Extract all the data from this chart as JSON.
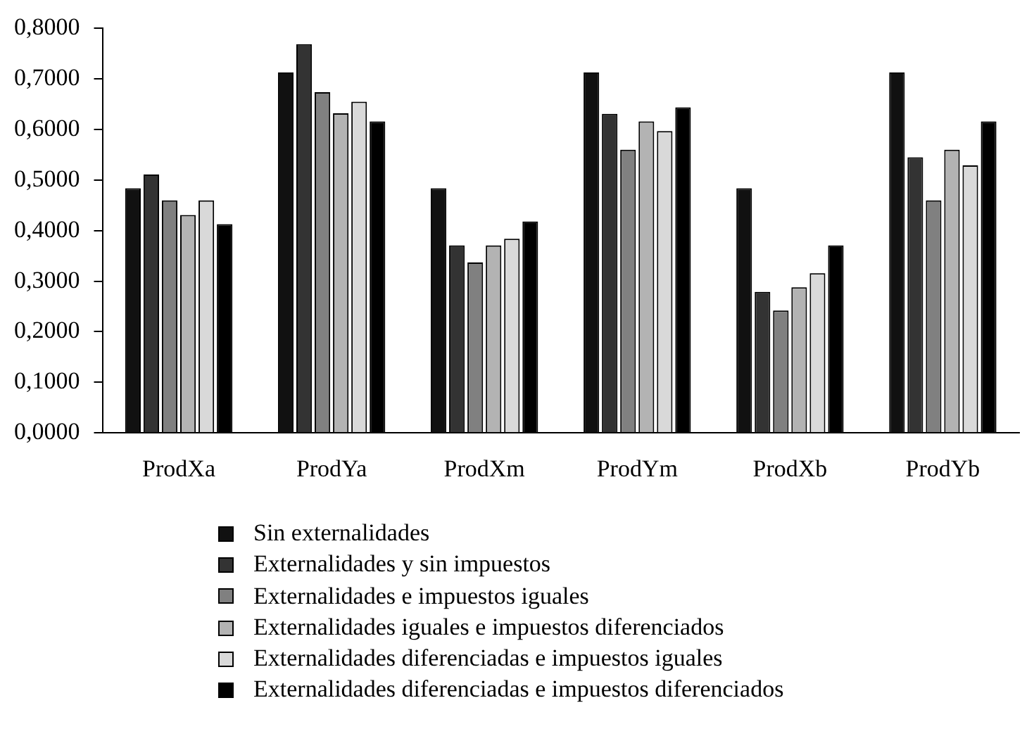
{
  "chart_data": {
    "type": "bar",
    "categories": [
      "ProdXa",
      "ProdYa",
      "ProdXm",
      "ProdYm",
      "ProdXb",
      "ProdYb"
    ],
    "series": [
      {
        "name": "Sin externalidades",
        "color": "#111111",
        "values": [
          0.484,
          0.713,
          0.484,
          0.713,
          0.484,
          0.713
        ]
      },
      {
        "name": "Externalidades y sin impuestos",
        "color": "#333333",
        "values": [
          0.511,
          0.769,
          0.371,
          0.631,
          0.279,
          0.545
        ]
      },
      {
        "name": "Externalidades e impuestos iguales",
        "color": "#808080",
        "values": [
          0.46,
          0.674,
          0.337,
          0.56,
          0.242,
          0.46
        ]
      },
      {
        "name": "Externalidades iguales e impuestos diferenciados",
        "color": "#b3b3b3",
        "values": [
          0.431,
          0.632,
          0.371,
          0.616,
          0.288,
          0.56
        ]
      },
      {
        "name": "Externalidades diferenciadas e impuestos iguales",
        "color": "#d9d9d9",
        "values": [
          0.46,
          0.655,
          0.384,
          0.597,
          0.316,
          0.529
        ]
      },
      {
        "name": "Externalidades diferenciadas e impuestos diferenciados",
        "color": "#000000",
        "values": [
          0.413,
          0.616,
          0.418,
          0.644,
          0.371,
          0.616
        ]
      }
    ],
    "ylim": [
      0,
      0.8
    ],
    "yticks": [
      {
        "value": 0,
        "label": "0,0000"
      },
      {
        "value": 0.1,
        "label": "0,1000"
      },
      {
        "value": 0.2,
        "label": "0,2000"
      },
      {
        "value": 0.3,
        "label": "0,3000"
      },
      {
        "value": 0.4,
        "label": "0,4000"
      },
      {
        "value": 0.5,
        "label": "0,5000"
      },
      {
        "value": 0.6,
        "label": "0,6000"
      },
      {
        "value": 0.7,
        "label": "0,7000"
      },
      {
        "value": 0.8,
        "label": "0,8000"
      }
    ],
    "grid": false,
    "legend": "bottom"
  }
}
